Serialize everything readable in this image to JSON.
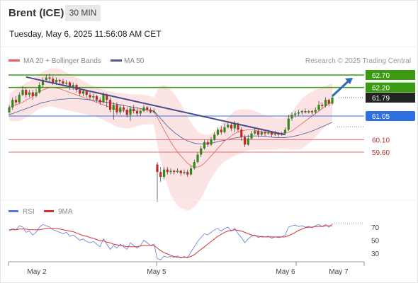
{
  "header": {
    "title": "Brent (ICE)",
    "timeframe": "30 MIN",
    "timestamp": "Tuesday, May 6, 2025 11:56:08 AM CET"
  },
  "legend": {
    "ma20_label": "MA 20 + Bollinger Bands",
    "ma50_label": "MA 50",
    "credit": "Research © 2025 Trading Central"
  },
  "colors": {
    "ma20": "#e06060",
    "ma50": "#4a5a9a",
    "bollinger_fill": "#fde4e4",
    "resistance": "#3a9a10",
    "support": "#e07070",
    "pivot": "#2f6fe0",
    "price_box": "#222222",
    "candle_up": "#2f8a1a",
    "candle_down": "#c02828",
    "trendline": "#4a4a8a",
    "arrow": "#2a6ab8",
    "rsi": "#5a7ad8",
    "rsi_ma": "#d83030"
  },
  "rsi_legend": {
    "rsi_label": "RSI",
    "ma_label": "9MA"
  },
  "chart_data": [
    {
      "type": "candlestick",
      "title": "Brent (ICE)",
      "timeframe": "30 MIN",
      "y_unit": "USD",
      "ylim": [
        57.0,
        63.1
      ],
      "x_ticks": [
        "May 2",
        "May 5",
        "May 6",
        "May 7"
      ],
      "levels": [
        {
          "value": 62.7,
          "label": "62.70",
          "kind": "resistance"
        },
        {
          "value": 62.2,
          "label": "62.20",
          "kind": "resistance"
        },
        {
          "value": 61.79,
          "label": "61.79",
          "kind": "last_price"
        },
        {
          "value": 61.05,
          "label": "61.05",
          "kind": "pivot"
        },
        {
          "value": 60.1,
          "label": "60.10",
          "kind": "support"
        },
        {
          "value": 59.6,
          "label": "59.60",
          "kind": "support"
        }
      ],
      "candles": [
        [
          61.2,
          61.4,
          61.5,
          61.1
        ],
        [
          61.4,
          61.7,
          61.8,
          61.3
        ],
        [
          61.7,
          61.6,
          61.85,
          61.5
        ],
        [
          61.6,
          61.9,
          62.0,
          61.55
        ],
        [
          61.9,
          62.1,
          62.25,
          61.85
        ],
        [
          62.1,
          61.9,
          62.2,
          61.8
        ],
        [
          61.9,
          62.0,
          62.1,
          61.8
        ],
        [
          62.0,
          61.85,
          62.1,
          61.7
        ],
        [
          61.85,
          62.0,
          62.15,
          61.8
        ],
        [
          62.0,
          62.3,
          62.4,
          61.95
        ],
        [
          62.3,
          62.5,
          62.6,
          62.2
        ],
        [
          62.5,
          62.6,
          62.7,
          62.4
        ],
        [
          62.6,
          62.55,
          62.75,
          62.45
        ],
        [
          62.55,
          62.4,
          62.65,
          62.3
        ],
        [
          62.4,
          62.5,
          62.6,
          62.3
        ],
        [
          62.5,
          62.45,
          62.55,
          62.35
        ],
        [
          62.45,
          62.35,
          62.55,
          62.25
        ],
        [
          62.35,
          62.4,
          62.5,
          62.25
        ],
        [
          62.4,
          62.2,
          62.45,
          62.1
        ],
        [
          62.2,
          62.3,
          62.4,
          62.1
        ],
        [
          62.3,
          62.1,
          62.35,
          62.0
        ],
        [
          62.1,
          61.95,
          62.2,
          61.85
        ],
        [
          61.95,
          62.05,
          62.1,
          61.85
        ],
        [
          62.05,
          61.9,
          62.1,
          61.8
        ],
        [
          61.9,
          61.8,
          62.0,
          61.7
        ],
        [
          61.8,
          61.85,
          61.95,
          61.7
        ],
        [
          61.85,
          61.7,
          61.9,
          61.6
        ],
        [
          61.7,
          61.6,
          61.8,
          61.5
        ],
        [
          61.6,
          61.9,
          62.0,
          61.55
        ],
        [
          61.9,
          61.7,
          61.95,
          61.4
        ],
        [
          61.7,
          61.3,
          61.8,
          61.2
        ],
        [
          61.3,
          61.5,
          61.6,
          60.9
        ],
        [
          61.5,
          61.2,
          61.6,
          61.1
        ],
        [
          61.2,
          61.4,
          61.5,
          61.1
        ],
        [
          61.4,
          61.3,
          61.5,
          61.2
        ],
        [
          61.3,
          61.1,
          61.4,
          61.0
        ],
        [
          61.1,
          61.35,
          61.45,
          60.85
        ],
        [
          61.35,
          61.25,
          61.5,
          61.15
        ],
        [
          61.25,
          61.15,
          61.4,
          61.05
        ],
        [
          61.15,
          61.25,
          61.3,
          61.05
        ],
        [
          61.25,
          61.4,
          61.5,
          61.2
        ],
        [
          61.4,
          61.3,
          61.45,
          61.2
        ],
        [
          61.3,
          61.2,
          61.4,
          61.15
        ],
        [
          61.2,
          61.25,
          61.35,
          61.15
        ],
        [
          59.1,
          58.8,
          59.2,
          57.6
        ],
        [
          58.8,
          58.6,
          59.0,
          58.4
        ],
        [
          58.6,
          58.9,
          59.0,
          58.5
        ],
        [
          58.9,
          58.8,
          59.0,
          58.7
        ],
        [
          58.8,
          58.85,
          58.95,
          58.7
        ],
        [
          58.85,
          58.8,
          58.9,
          58.7
        ],
        [
          58.8,
          58.85,
          58.95,
          58.75
        ],
        [
          58.85,
          58.75,
          58.9,
          58.65
        ],
        [
          58.75,
          58.8,
          58.9,
          58.7
        ],
        [
          58.8,
          58.7,
          58.9,
          58.6
        ],
        [
          58.7,
          58.95,
          59.05,
          58.65
        ],
        [
          58.95,
          59.2,
          59.3,
          58.9
        ],
        [
          59.2,
          59.5,
          59.6,
          59.15
        ],
        [
          59.5,
          59.75,
          59.85,
          59.4
        ],
        [
          59.75,
          60.0,
          60.1,
          59.7
        ],
        [
          60.0,
          59.9,
          60.1,
          59.8
        ],
        [
          59.9,
          60.1,
          60.2,
          59.85
        ],
        [
          60.1,
          60.3,
          60.4,
          60.05
        ],
        [
          60.3,
          60.5,
          60.6,
          60.25
        ],
        [
          60.5,
          60.4,
          60.65,
          60.3
        ],
        [
          60.4,
          60.6,
          60.75,
          60.35
        ],
        [
          60.6,
          60.7,
          60.85,
          60.55
        ],
        [
          60.7,
          60.55,
          60.8,
          60.45
        ],
        [
          60.55,
          60.75,
          60.85,
          60.4
        ],
        [
          60.75,
          60.5,
          60.8,
          60.4
        ],
        [
          60.5,
          60.2,
          60.6,
          60.05
        ],
        [
          60.2,
          59.9,
          60.3,
          59.8
        ],
        [
          59.9,
          60.15,
          60.3,
          59.85
        ],
        [
          60.15,
          60.35,
          60.45,
          60.1
        ],
        [
          60.35,
          60.45,
          60.55,
          60.3
        ],
        [
          60.45,
          60.3,
          60.55,
          60.2
        ],
        [
          60.3,
          60.4,
          60.55,
          60.25
        ],
        [
          60.4,
          60.35,
          60.5,
          60.25
        ],
        [
          60.35,
          60.4,
          60.5,
          60.3
        ],
        [
          60.4,
          60.3,
          60.45,
          60.2
        ],
        [
          60.3,
          60.35,
          60.45,
          60.25
        ],
        [
          60.35,
          60.3,
          60.4,
          60.2
        ],
        [
          60.3,
          60.35,
          60.4,
          60.25
        ],
        [
          60.35,
          60.5,
          60.6,
          60.3
        ],
        [
          60.5,
          60.95,
          61.1,
          60.45
        ],
        [
          60.95,
          61.1,
          61.2,
          60.85
        ],
        [
          61.1,
          61.15,
          61.25,
          61.0
        ],
        [
          61.15,
          61.2,
          61.3,
          61.05
        ],
        [
          61.2,
          61.25,
          61.3,
          61.1
        ],
        [
          61.25,
          61.2,
          61.35,
          61.15
        ],
        [
          61.2,
          61.25,
          61.3,
          61.15
        ],
        [
          61.25,
          61.2,
          61.3,
          61.1
        ],
        [
          61.2,
          61.3,
          61.4,
          61.15
        ],
        [
          61.3,
          61.5,
          61.65,
          61.25
        ],
        [
          61.5,
          61.45,
          61.6,
          61.35
        ],
        [
          61.45,
          61.7,
          61.8,
          61.4
        ],
        [
          61.7,
          61.55,
          61.75,
          61.45
        ],
        [
          61.55,
          61.79,
          61.9,
          61.5
        ]
      ],
      "ma20": [
        61.4,
        61.45,
        61.5,
        61.55,
        61.6,
        61.7,
        61.75,
        61.85,
        61.95,
        62.05,
        62.1,
        62.15,
        62.2,
        62.2,
        62.18,
        62.15,
        62.1,
        62.05,
        62.0,
        61.95,
        61.9,
        61.85,
        61.8,
        61.75,
        61.7,
        61.65,
        61.6,
        61.55,
        61.5,
        61.45,
        61.4,
        61.35,
        61.3,
        61.28,
        61.26,
        61.25,
        61.25,
        61.26,
        61.28,
        61.3,
        61.3,
        61.3,
        61.28,
        61.25,
        61.0,
        60.75,
        60.5,
        60.25,
        60.0,
        59.8,
        59.6,
        59.45,
        59.3,
        59.15,
        59.05,
        59.0,
        59.0,
        59.05,
        59.15,
        59.3,
        59.45,
        59.6,
        59.75,
        59.9,
        60.05,
        60.15,
        60.25,
        60.35,
        60.4,
        60.45,
        60.48,
        60.5,
        60.5,
        60.48,
        60.45,
        60.42,
        60.4,
        60.38,
        60.36,
        60.35,
        60.35,
        60.36,
        60.38,
        60.4,
        60.45,
        60.55,
        60.65,
        60.75,
        60.85,
        60.95,
        61.05,
        61.15,
        61.25,
        61.35,
        61.45,
        61.55,
        61.62
      ],
      "ma50": [
        61.1,
        61.15,
        61.2,
        61.25,
        61.3,
        61.35,
        61.4,
        61.45,
        61.5,
        61.55,
        61.6,
        61.62,
        61.65,
        61.68,
        61.7,
        61.72,
        61.73,
        61.74,
        61.75,
        61.75,
        61.75,
        61.74,
        61.73,
        61.72,
        61.7,
        61.68,
        61.66,
        61.64,
        61.62,
        61.6,
        61.58,
        61.55,
        61.52,
        61.5,
        61.48,
        61.45,
        61.42,
        61.4,
        61.38,
        61.35,
        61.32,
        61.3,
        61.28,
        61.26,
        61.1,
        60.95,
        60.8,
        60.65,
        60.52,
        60.4,
        60.3,
        60.2,
        60.12,
        60.05,
        60.0,
        59.96,
        59.94,
        59.93,
        59.93,
        59.94,
        59.96,
        59.99,
        60.02,
        60.05,
        60.08,
        60.11,
        60.14,
        60.17,
        60.19,
        60.21,
        60.23,
        60.24,
        60.25,
        60.25,
        60.25,
        60.24,
        60.23,
        60.22,
        60.2,
        60.19,
        60.18,
        60.18,
        60.19,
        60.2,
        60.22,
        60.25,
        60.28,
        60.32,
        60.36,
        60.4,
        60.45,
        60.5,
        60.56,
        60.62,
        60.68,
        60.74,
        60.8
      ],
      "bb_width": [
        0.55,
        0.6,
        0.65,
        0.7,
        0.7,
        0.7,
        0.7,
        0.7,
        0.7,
        0.7,
        0.72,
        0.74,
        0.76,
        0.78,
        0.8,
        0.8,
        0.78,
        0.76,
        0.74,
        0.72,
        0.7,
        0.68,
        0.66,
        0.64,
        0.62,
        0.6,
        0.6,
        0.6,
        0.6,
        0.62,
        0.64,
        0.66,
        0.68,
        0.7,
        0.7,
        0.7,
        0.68,
        0.66,
        0.64,
        0.62,
        0.6,
        0.58,
        0.56,
        0.56,
        1.1,
        1.5,
        1.8,
        2.0,
        2.1,
        2.15,
        2.15,
        2.1,
        2.0,
        1.9,
        1.75,
        1.6,
        1.45,
        1.3,
        1.15,
        1.0,
        0.9,
        0.85,
        0.8,
        0.8,
        0.82,
        0.85,
        0.88,
        0.9,
        0.9,
        0.88,
        0.85,
        0.82,
        0.8,
        0.78,
        0.75,
        0.72,
        0.7,
        0.68,
        0.66,
        0.64,
        0.62,
        0.62,
        0.64,
        0.68,
        0.75,
        0.85,
        0.95,
        1.0,
        1.02,
        1.0,
        0.98,
        0.95,
        0.9,
        0.85,
        0.8,
        0.78,
        0.75
      ],
      "trendline": {
        "from": [
          5,
          62.62
        ],
        "to": [
          82,
          60.3
        ]
      },
      "projection": {
        "from": [
          96,
          61.85
        ],
        "to": [
          100,
          62.7
        ]
      }
    },
    {
      "type": "line",
      "title": "RSI",
      "series": [
        {
          "name": "RSI",
          "values": [
            64,
            68,
            66,
            72,
            70,
            62,
            64,
            58,
            62,
            70,
            74,
            72,
            70,
            66,
            64,
            62,
            60,
            62,
            56,
            58,
            54,
            50,
            52,
            48,
            46,
            48,
            44,
            40,
            52,
            44,
            36,
            42,
            38,
            44,
            40,
            36,
            46,
            42,
            38,
            42,
            50,
            46,
            42,
            44,
            22,
            20,
            26,
            24,
            25,
            24,
            26,
            23,
            25,
            23,
            32,
            40,
            48,
            54,
            60,
            58,
            62,
            66,
            68,
            64,
            68,
            70,
            64,
            68,
            60,
            54,
            46,
            52,
            56,
            58,
            54,
            56,
            55,
            56,
            53,
            55,
            54,
            55,
            58,
            70,
            72,
            73,
            71,
            72,
            70,
            71,
            69,
            72,
            74,
            71,
            74,
            70,
            75
          ]
        },
        {
          "name": "9MA",
          "values": [
            66,
            66,
            66,
            67,
            67,
            67,
            66,
            66,
            66,
            66,
            67,
            68,
            68,
            68,
            68,
            67,
            66,
            65,
            64,
            63,
            61,
            59,
            57,
            56,
            54,
            53,
            51,
            49,
            49,
            47,
            46,
            44,
            43,
            42,
            41,
            40,
            40,
            40,
            40,
            41,
            42,
            42,
            42,
            42,
            38,
            34,
            31,
            29,
            27,
            25,
            24,
            24,
            24,
            24,
            25,
            28,
            32,
            36,
            40,
            44,
            48,
            52,
            56,
            59,
            62,
            64,
            65,
            66,
            65,
            64,
            62,
            60,
            58,
            57,
            56,
            55,
            55,
            55,
            55,
            55,
            55,
            55,
            55,
            57,
            59,
            62,
            65,
            67,
            69,
            70,
            70,
            71,
            71,
            71,
            72,
            72,
            72
          ]
        }
      ],
      "ylim": [
        20,
        85
      ],
      "y_ticks": [
        70,
        50,
        30
      ],
      "x_ticks": [
        "May 2",
        "May 5",
        "May 6",
        "May 7"
      ]
    }
  ]
}
